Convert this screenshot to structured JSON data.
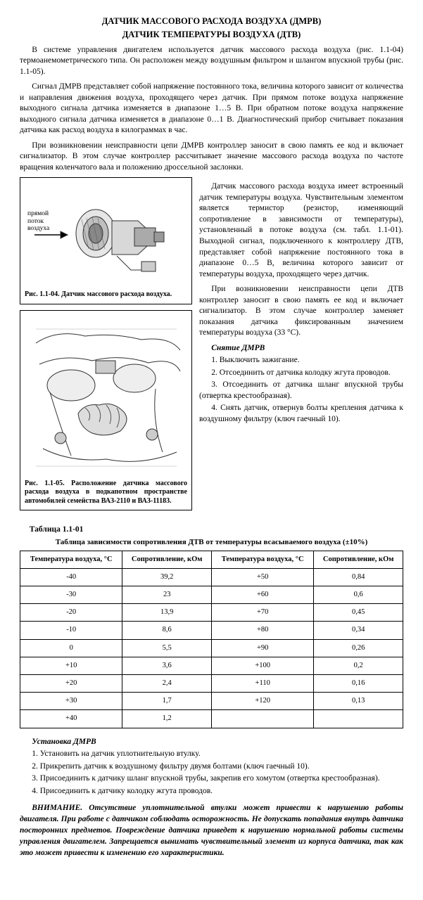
{
  "title1": "ДАТЧИК МАССОВОГО РАСХОДА ВОЗДУХА (ДМРВ)",
  "title2": "ДАТЧИК ТЕМПЕРАТУРЫ ВОЗДУХА (ДТВ)",
  "p1": "В системе управления двигателем используется датчик массового расхода воздуха (рис. 1.1-04) термоанемометрического типа. Он расположен между воздушным фильтром и шлангом впускной трубы (рис. 1.1-05).",
  "p2": "Сигнал ДМРВ представляет собой напряжение постоянного тока, величина которого зависит от количества и направления движения воздуха, проходящего через датчик. При прямом потоке воздуха напряжение выходного сигнала датчика изменяется в диапазоне 1…5 В. При обратном потоке воздуха напряжение выходного сигнала датчика изменяется в диапазоне 0…1 В. Диагностический прибор считывает показания датчика как расход воздуха в килограммах в час.",
  "p3": "При возникновении неисправности цепи ДМРВ контроллер заносит в свою память ее код и включает сигнализатор. В этом случае контроллер рассчитывает значение массового расхода воздуха по частоте вращения коленчатого вала и положению дроссельной заслонки.",
  "fig1_arrow": "прямой\nпоток\nвоздуха",
  "fig1_cap": "Рис. 1.1-04. Датчик массового расхода воздуха.",
  "fig2_cap": "Рис. 1.1-05. Расположение датчика массового расхода воздуха в подкапотном пространстве автомобилей семейства ВАЗ-2110 и ВАЗ-11183.",
  "r1": "Датчик массового расхода воздуха имеет встроенный датчик температуры воздуха. Чувствительным элементом является термистор (резистор, изменяющий сопротивление в зависимости от температуры), установленный в потоке воздуха (см. табл. 1.1-01). Выходной сигнал, подключенного к контроллеру ДТВ, представляет собой напряжение постоянного тока в диапазоне 0…5 В, величина которого зависит от температуры воздуха, проходящего через датчик.",
  "r2": "При возникновении неисправности цепи ДТВ контроллер заносит в свою память ее код и включает сигнализатор. В этом случае контроллер заменяет показания датчика фиксированным значением температуры воздуха (33 °С).",
  "sub_remove": "Снятие ДМРВ",
  "s1": "1. Выключить зажигание.",
  "s2": "2. Отсоединить от датчика колодку жгута проводов.",
  "s3": "3. Отсоединить от датчика шланг впускной трубы (отвертка крестообразная).",
  "s4": "4. Снять датчик, отвернув болты крепления датчика к воздушному фильтру (ключ гаечный 10).",
  "tabnum": "Таблица 1.1-01",
  "tabcap": "Таблица зависимости сопротивления ДТВ от температуры всасываемого воздуха (±10%)",
  "table": {
    "columns": [
      "Температура воздуха, °С",
      "Сопротивление, кОм",
      "Температура воздуха, °С",
      "Сопротивление, кОм"
    ],
    "rows": [
      [
        "-40",
        "39,2",
        "+50",
        "0,84"
      ],
      [
        "-30",
        "23",
        "+60",
        "0,6"
      ],
      [
        "-20",
        "13,9",
        "+70",
        "0,45"
      ],
      [
        "-10",
        "8,6",
        "+80",
        "0,34"
      ],
      [
        "0",
        "5,5",
        "+90",
        "0,26"
      ],
      [
        "+10",
        "3,6",
        "+100",
        "0,2"
      ],
      [
        "+20",
        "2,4",
        "+110",
        "0,16"
      ],
      [
        "+30",
        "1,7",
        "+120",
        "0,13"
      ],
      [
        "+40",
        "1,2",
        "",
        ""
      ]
    ]
  },
  "sub_install": "Установка ДМРВ",
  "i1": "1. Установить на датчик уплотнительную втулку.",
  "i2": "2. Прикрепить датчик к воздушному фильтру двумя болтами (ключ гаечный 10).",
  "i3": "3. Присоединить к датчику шланг впускной трубы, закрепив его хомутом (отвертка крестообразная).",
  "i4": "4. Присоединить к датчику колодку жгута проводов.",
  "warn": "ВНИМАНИЕ. Отсутствие уплотнительной втулки может привести к нарушению работы двигателя. При работе с датчиком соблюдать осторожность. Не допускать попадания внутрь датчика посторонних предметов. Повреждение датчика приведет к нарушению нормальной работы системы управления двигателем. Запрещается вынимать чувствительный элемент из корпуса датчика, так как это может привести к изменению его характеристики."
}
